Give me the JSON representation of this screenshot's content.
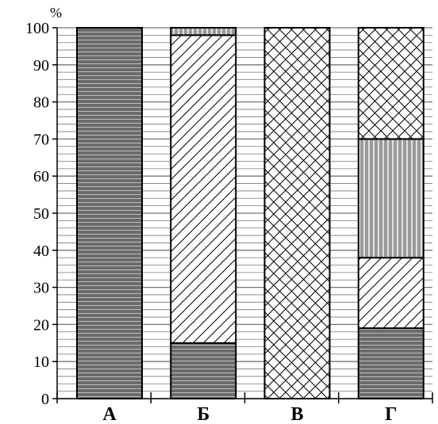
{
  "chart_data": {
    "type": "bar",
    "stacked": true,
    "categories": [
      "А",
      "Б",
      "В",
      "Г"
    ],
    "ylabel": "%",
    "ylim": [
      0,
      100
    ],
    "yticks": [
      0,
      10,
      20,
      30,
      40,
      50,
      60,
      70,
      80,
      90,
      100
    ],
    "grid": true,
    "series": [
      {
        "pattern": "horizontal-stripes-dark",
        "values": [
          100,
          15,
          0,
          19
        ]
      },
      {
        "pattern": "diagonal-hatch",
        "values": [
          0,
          83,
          0,
          19
        ]
      },
      {
        "pattern": "vertical-stripes-gray",
        "values": [
          0,
          2,
          0,
          32
        ]
      },
      {
        "pattern": "crosshatch",
        "values": [
          0,
          0,
          100,
          30
        ]
      }
    ]
  },
  "colors": {
    "dark_fill": "#6b6b6b",
    "gray_fill": "#9a9a9a",
    "grid": "#777777",
    "stroke": "#000000"
  }
}
